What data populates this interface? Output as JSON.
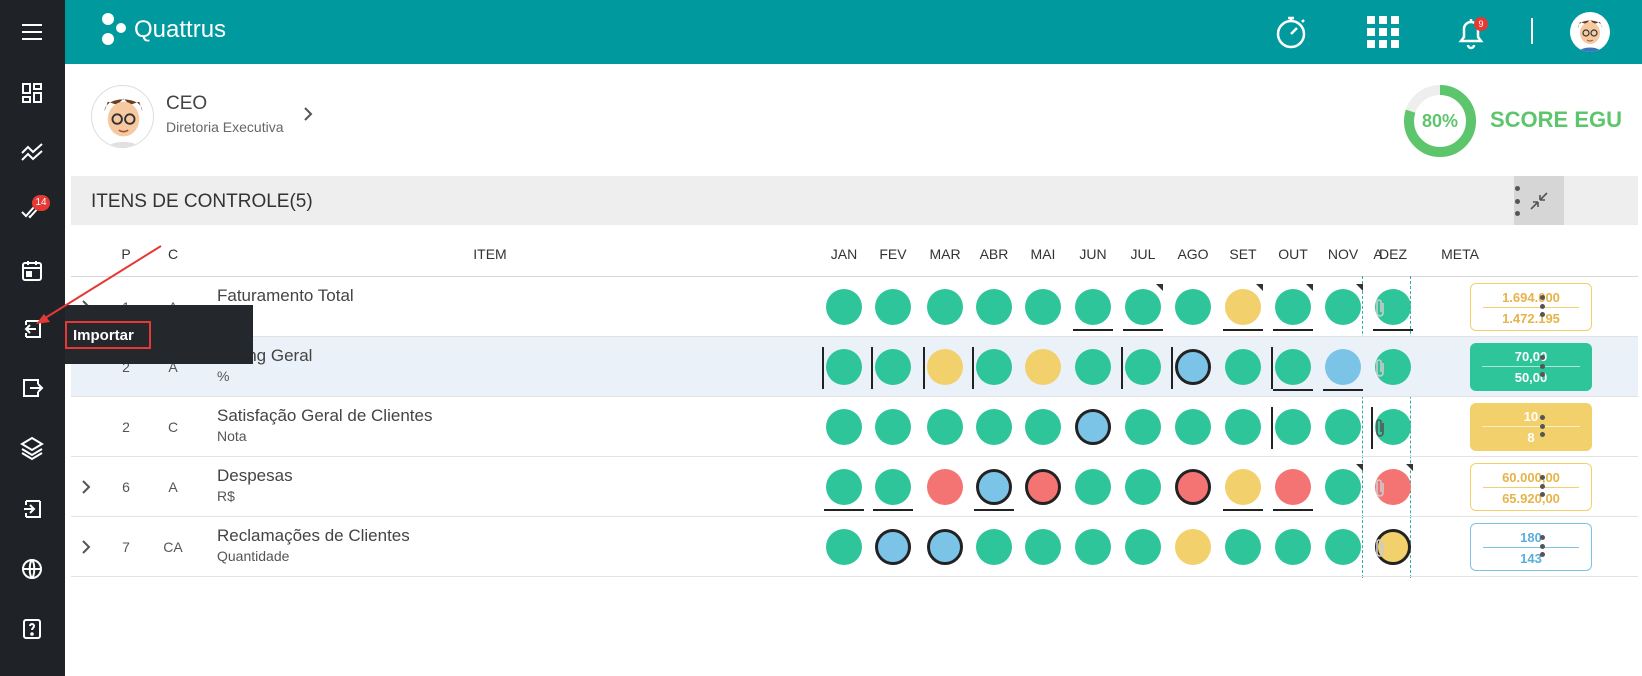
{
  "app": {
    "name": "Quattrus",
    "notif_count": "9"
  },
  "sidebar": {
    "items": [
      {
        "icon": "menu-icon"
      },
      {
        "icon": "dashboard-icon"
      },
      {
        "icon": "chart-line-icon"
      },
      {
        "icon": "check-double-icon",
        "badge": "14"
      },
      {
        "icon": "calendar-icon"
      },
      {
        "icon": "import-icon"
      },
      {
        "icon": "export-icon"
      },
      {
        "icon": "layers-icon"
      },
      {
        "icon": "login-icon"
      },
      {
        "icon": "globe-icon"
      },
      {
        "icon": "help-icon"
      }
    ]
  },
  "profile": {
    "title": "CEO",
    "subtitle": "Diretoria Executiva"
  },
  "score": {
    "value": 80,
    "value_label": "80%",
    "label": "SCORE EGU",
    "color": "#5dc56b"
  },
  "section": {
    "title": "ITENS DE CONTROLE(5)"
  },
  "columns": {
    "p": "P",
    "c": "C",
    "item": "ITEM",
    "a": "A",
    "meta": "META",
    "months": [
      "JAN",
      "FEV",
      "MAR",
      "ABR",
      "MAI",
      "JUN",
      "JUL",
      "AGO",
      "SET",
      "OUT",
      "NOV",
      "DEZ"
    ]
  },
  "tooltip": {
    "label": "Importar"
  },
  "rows": [
    {
      "p": "1",
      "c": "A",
      "name": "Faturamento Total",
      "unit": "",
      "expandable": true,
      "highlight": false,
      "dots": [
        "green",
        "green",
        "green",
        "green",
        "green",
        "green",
        "green",
        "green",
        "yellow",
        "green",
        "green",
        "green"
      ],
      "meta": {
        "style": "outline-y",
        "v1": "1.694.000",
        "v2": "1.472.195"
      },
      "clip_active": false
    },
    {
      "p": "2",
      "c": "A",
      "name": "Rating Geral",
      "unit": "%",
      "expandable": false,
      "highlight": true,
      "dots": [
        "green",
        "green",
        "yellow",
        "green",
        "yellow",
        "green",
        "green",
        "blue-ring",
        "green",
        "green",
        "blue",
        "green"
      ],
      "meta": {
        "style": "solid-g",
        "v1": "70,00",
        "v2": "50,00"
      },
      "clip_active": false
    },
    {
      "p": "2",
      "c": "C",
      "name": "Satisfação Geral de Clientes",
      "unit": "Nota",
      "expandable": false,
      "highlight": false,
      "dots": [
        "green",
        "green",
        "green",
        "green",
        "green",
        "blue-ring",
        "green",
        "green",
        "green",
        "green",
        "green",
        "green"
      ],
      "meta": {
        "style": "solid-y",
        "v1": "10",
        "v2": "8"
      },
      "clip_active": true
    },
    {
      "p": "6",
      "c": "A",
      "name": "Despesas",
      "unit": "R$",
      "expandable": true,
      "highlight": false,
      "dots": [
        "green",
        "green",
        "red",
        "blue-ring",
        "red-ring",
        "green",
        "green",
        "red-ring",
        "yellow",
        "red",
        "green",
        "red"
      ],
      "meta": {
        "style": "outline-y",
        "v1": "60.000,00",
        "v2": "65.920,00"
      },
      "clip_active": false
    },
    {
      "p": "7",
      "c": "CA",
      "name": "Reclamações de Clientes",
      "unit": "Quantidade",
      "expandable": true,
      "highlight": false,
      "dots": [
        "green",
        "blue-ring",
        "blue-ring",
        "green",
        "green",
        "green",
        "green",
        "yellow",
        "green",
        "green",
        "green",
        "yellow-ring"
      ],
      "meta": {
        "style": "outline-b",
        "v1": "180",
        "v2": "143"
      },
      "clip_active": false
    }
  ]
}
